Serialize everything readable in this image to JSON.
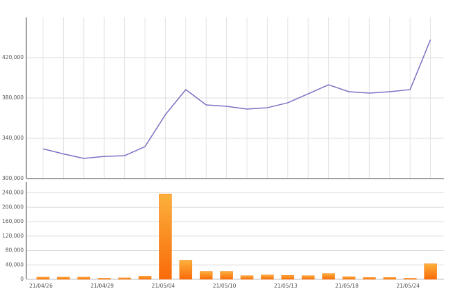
{
  "chart_data": [
    {
      "type": "line",
      "categories": [
        "21/04/26",
        null,
        null,
        "21/04/29",
        null,
        null,
        "21/05/04",
        null,
        null,
        "21/05/10",
        null,
        null,
        "21/05/13",
        null,
        null,
        "21/05/18",
        null,
        null,
        "21/05/24",
        null
      ],
      "values": [
        329500,
        324500,
        320000,
        322000,
        322700,
        331700,
        363400,
        388300,
        373100,
        371700,
        369000,
        370300,
        375200,
        384100,
        393100,
        386200,
        384800,
        386200,
        388300,
        437900
      ],
      "color": "#7b72c4",
      "ylim": [
        300000,
        460000
      ],
      "yticks": [
        {
          "value": 300000,
          "label": "300,000"
        },
        {
          "value": 340000,
          "label": "340,000"
        },
        {
          "value": 380000,
          "label": "380,000"
        },
        {
          "value": 420000,
          "label": "420,000"
        }
      ],
      "grid": true
    },
    {
      "type": "bar",
      "categories": [
        "21/04/26",
        null,
        null,
        "21/04/29",
        null,
        null,
        "21/05/04",
        null,
        null,
        "21/05/10",
        null,
        null,
        "21/05/13",
        null,
        null,
        "21/05/18",
        null,
        null,
        "21/05/24",
        null
      ],
      "values": [
        6000,
        6000,
        6000,
        3000,
        4000,
        9000,
        237000,
        53000,
        22000,
        22000,
        10000,
        12000,
        11000,
        10000,
        16000,
        7000,
        5000,
        5000,
        3000,
        43000
      ],
      "color": "#fa7a12",
      "ylim": [
        0,
        270000
      ],
      "yticks": [
        0,
        {
          "value": 40000,
          "label": "40,000"
        },
        {
          "value": 80000,
          "label": "80,000"
        },
        {
          "value": 120000,
          "label": "120,000"
        },
        {
          "value": 160000,
          "label": "160,000"
        },
        {
          "value": 200000,
          "label": "200,000"
        },
        {
          "value": 240000,
          "label": "240,000"
        }
      ],
      "grid": true
    }
  ]
}
